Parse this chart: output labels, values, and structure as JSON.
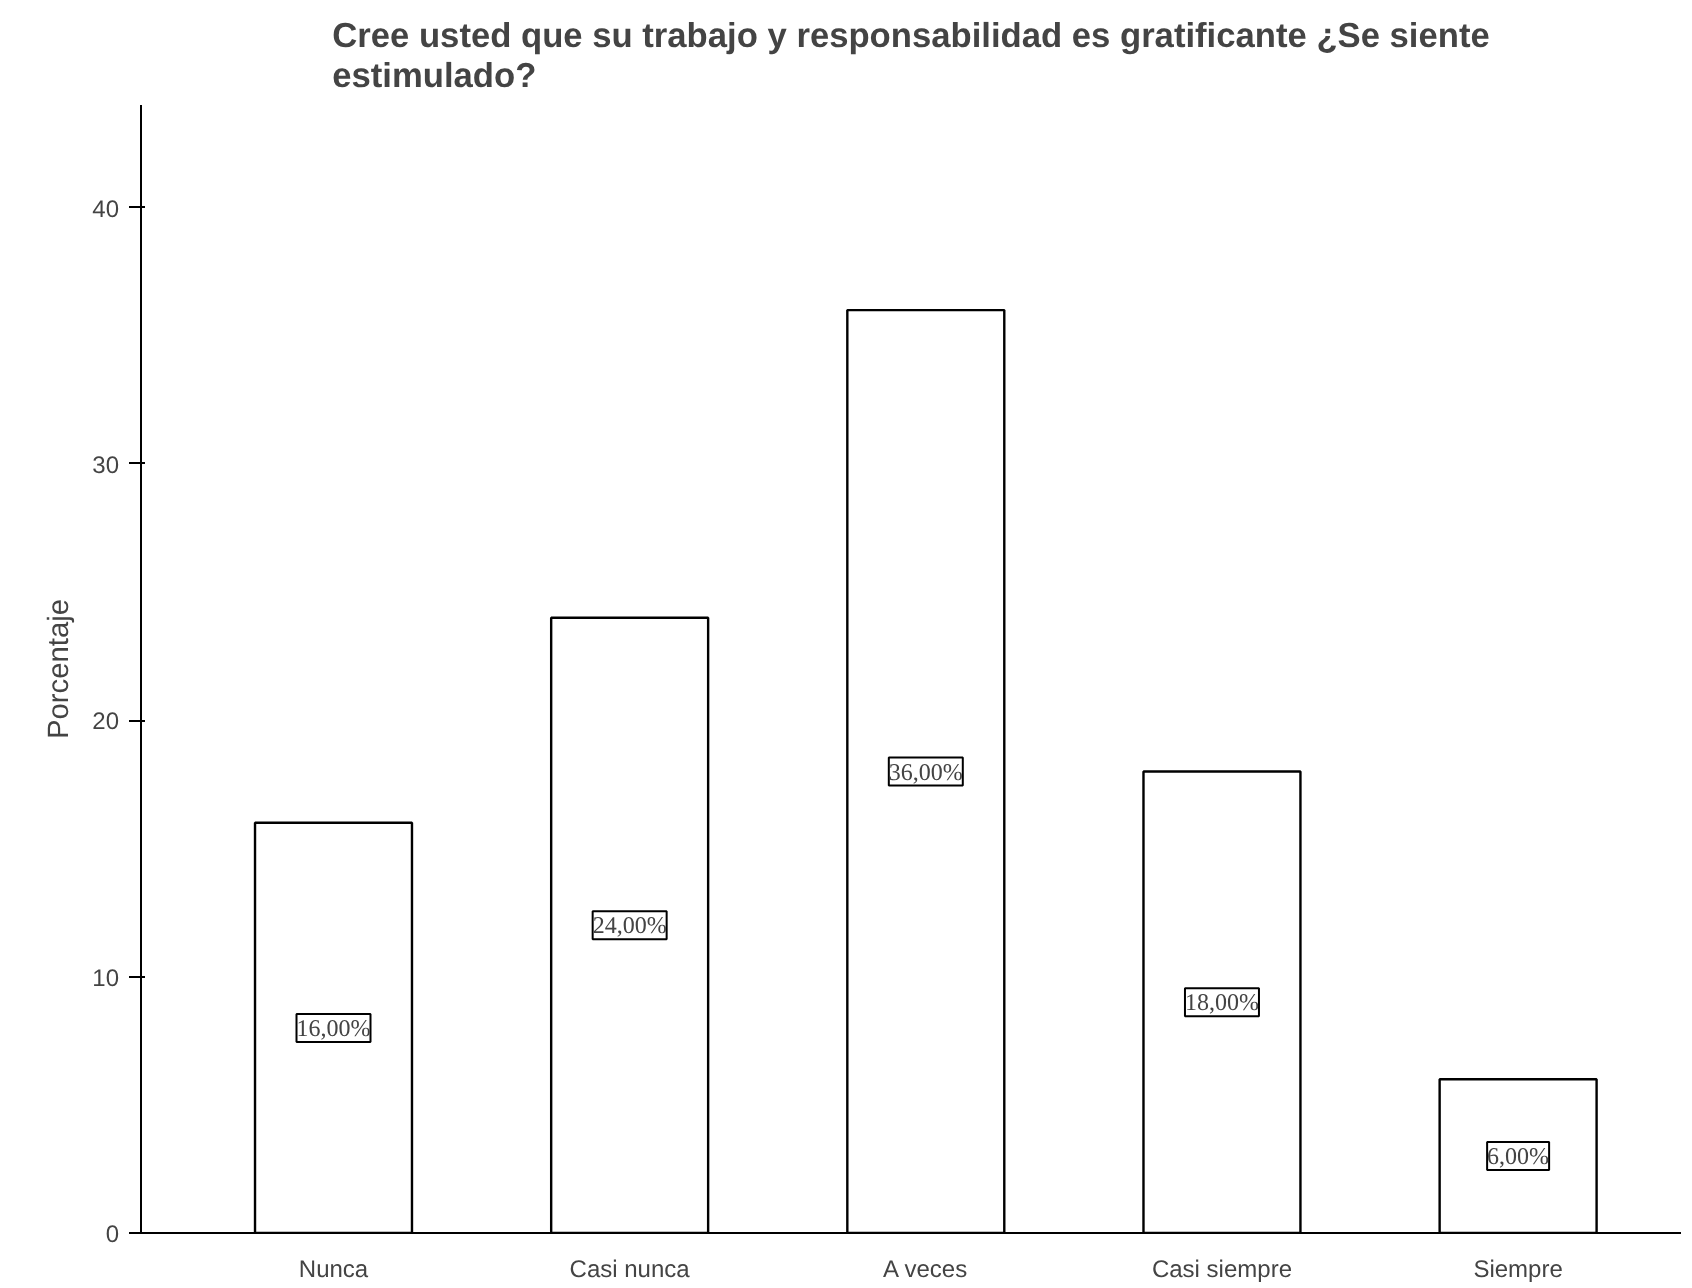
{
  "chart_data": {
    "type": "bar",
    "title": "Cree usted que su trabajo y responsabilidad es gratificante ¿Se siente estimulado?",
    "ylabel": "Porcentaje",
    "categories": [
      "Nunca",
      "Casi nunca",
      "A veces",
      "Casi siempre",
      "Siempre"
    ],
    "values": [
      16,
      24,
      36,
      18,
      6
    ],
    "value_labels": [
      "16,00%",
      "24,00%",
      "36,00%",
      "18,00%",
      "6,00%"
    ],
    "color": "#ffffff",
    "ylim": [
      0,
      44
    ],
    "yticks": [
      0,
      10,
      20,
      30,
      40
    ],
    "grid": false
  }
}
